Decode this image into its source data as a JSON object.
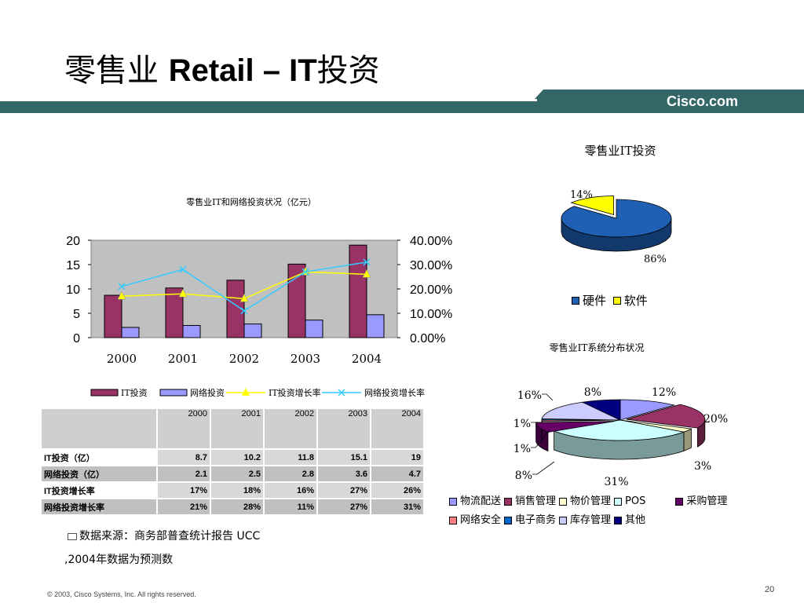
{
  "slide": {
    "title_cn": "零售业 ",
    "title_en": "Retail – IT",
    "title_cn2": "投资",
    "brand": "Cisco.com",
    "page_number": "20",
    "copyright": "© 2003, Cisco Systems, Inc. All rights reserved.",
    "source_line1": "数据来源：商务部普查统计报告 UCC",
    "source_line2": ",2004年数据为预测数",
    "colors": {
      "header_bar": "#336666",
      "header_stripe": "#6b9797"
    }
  },
  "chart_data": [
    {
      "type": "bar",
      "title": "零售业IT和网络投资状况（亿元）",
      "categories": [
        "2000",
        "2001",
        "2002",
        "2003",
        "2004"
      ],
      "y_ticks": [
        "0",
        "5",
        "10",
        "15",
        "20"
      ],
      "ylim": [
        0,
        20
      ],
      "y2_ticks": [
        "0.00%",
        "10.00%",
        "20.00%",
        "30.00%",
        "40.00%"
      ],
      "y2lim": [
        0,
        40
      ],
      "series": [
        {
          "name": "IT投资",
          "kind": "bar",
          "values": [
            8.7,
            10.2,
            11.8,
            15.1,
            19
          ],
          "color": "#993366"
        },
        {
          "name": "网络投资",
          "kind": "bar",
          "values": [
            2.1,
            2.5,
            2.8,
            3.6,
            4.7
          ],
          "color": "#9999ff"
        },
        {
          "name": "IT投资增长率",
          "kind": "line",
          "axis": "right",
          "values": [
            17,
            18,
            16,
            27,
            26
          ],
          "color": "#ffff00"
        },
        {
          "name": "网络投资增长率",
          "kind": "line",
          "axis": "right",
          "values": [
            21,
            28,
            11,
            27,
            31
          ],
          "color": "#33ccff"
        }
      ],
      "grid": false,
      "legend_placement": "bottom"
    },
    {
      "type": "table",
      "columns": [
        "",
        "2000",
        "2001",
        "2002",
        "2003",
        "2004"
      ],
      "rows": [
        [
          "IT投资（亿）",
          "8.7",
          "10.2",
          "11.8",
          "15.1",
          "19"
        ],
        [
          "网络投资（亿）",
          "2.1",
          "2.5",
          "2.8",
          "3.6",
          "4.7"
        ],
        [
          "IT投资增长率",
          "17%",
          "18%",
          "16%",
          "27%",
          "26%"
        ],
        [
          "网络投资增长率",
          "21%",
          "28%",
          "11%",
          "27%",
          "31%"
        ]
      ]
    },
    {
      "type": "pie",
      "title": "零售业IT投资",
      "labels": [
        "硬件",
        "软件"
      ],
      "values": [
        86,
        14
      ],
      "value_labels": [
        "86%",
        "14%"
      ],
      "colors": [
        "#1f5fb4",
        "#ffff00"
      ],
      "legend_placement": "bottom"
    },
    {
      "type": "pie",
      "title": "零售业IT系统分布状况",
      "labels": [
        "物流配送",
        "销售管理",
        "物价管理",
        "POS",
        "采购管理",
        "网络安全",
        "电子商务",
        "库存管理",
        "其他"
      ],
      "values": [
        12,
        20,
        3,
        31,
        8,
        1,
        1,
        16,
        8
      ],
      "value_labels": [
        "12%",
        "20%",
        "3%",
        "31%",
        "8%",
        "1%",
        "1%",
        "16%",
        "8%"
      ],
      "colors": [
        "#9999ff",
        "#993366",
        "#ffffcc",
        "#ccffff",
        "#660066",
        "#ff8080",
        "#0066cc",
        "#ccccff",
        "#000080"
      ],
      "legend_placement": "bottom"
    }
  ]
}
